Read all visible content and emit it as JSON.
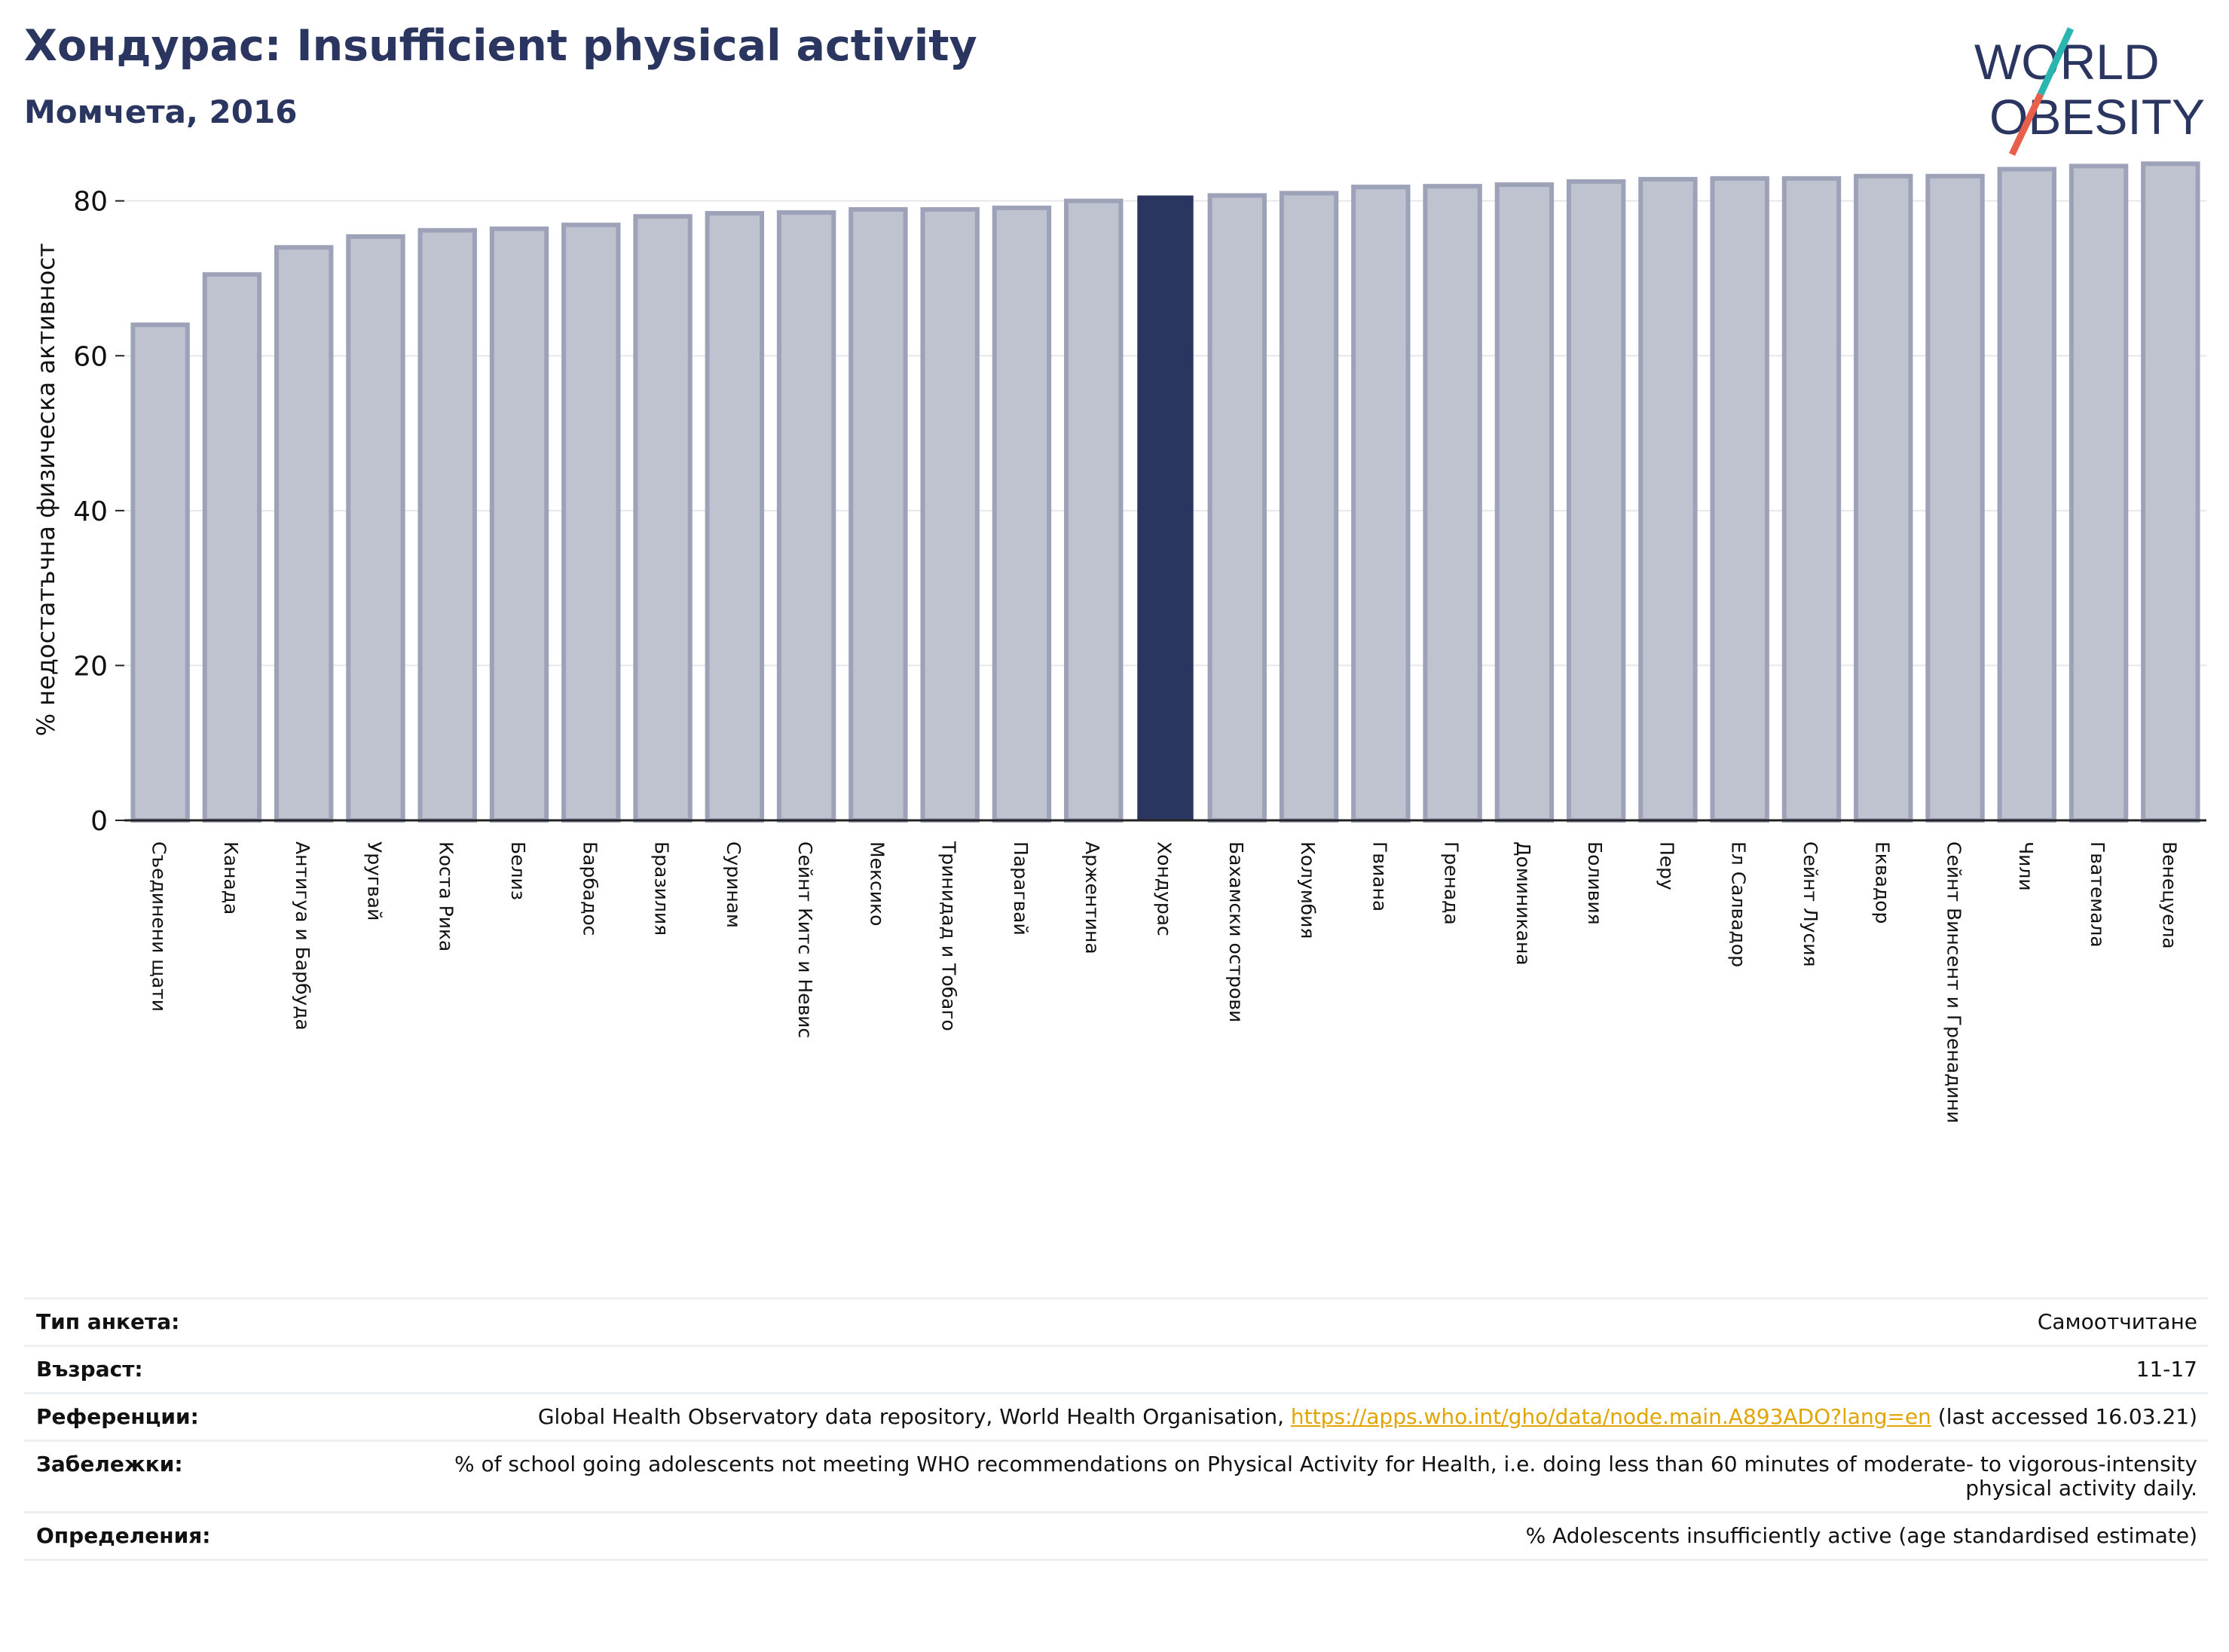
{
  "header": {
    "title": "Хондурас: Insufficient physical activity",
    "subtitle": "Момчета, 2016"
  },
  "logo": {
    "text_line1": "WORLD",
    "text_line2": "OBESITY",
    "colors": {
      "text": "#2a3560",
      "slash_top": "#2bb5b0",
      "slash_bottom": "#e8604c"
    }
  },
  "colors": {
    "bar": "#bfc2cf",
    "bar_edge": "#9ea2b8",
    "highlight": "#2a3560",
    "grid": "#e6e7ec",
    "axis": "#222222"
  },
  "chart_data": {
    "type": "bar",
    "title": "",
    "xlabel": "",
    "ylabel": "% недостатъчна физическа активност",
    "ylim": [
      0,
      86
    ],
    "yticks": [
      0,
      20,
      40,
      60,
      80
    ],
    "grid": true,
    "highlight_category": "Хондурас",
    "categories": [
      "Съединени щати",
      "Канада",
      "Антигуа и Барбуда",
      "Уругвай",
      "Коста Рика",
      "Белиз",
      "Барбадос",
      "Бразилия",
      "Суринам",
      "Сейнт Китс и Невис",
      "Мексико",
      "Тринидад и Тобаго",
      "Парагвай",
      "Аржентина",
      "Хондурас",
      "Бахамски острови",
      "Колумбия",
      "Гвиана",
      "Гренада",
      "Доминикана",
      "Боливия",
      "Перу",
      "Ел Салвадор",
      "Сейнт Лусия",
      "Еквадор",
      "Сейнт Винсент и Гренадини",
      "Чили",
      "Гватемала",
      "Венецуела"
    ],
    "values": [
      64.0,
      70.5,
      74.0,
      75.4,
      76.2,
      76.4,
      76.9,
      78.0,
      78.4,
      78.5,
      78.9,
      78.9,
      79.1,
      80.0,
      80.6,
      80.7,
      81.0,
      81.8,
      81.9,
      82.1,
      82.5,
      82.8,
      82.9,
      82.9,
      83.2,
      83.2,
      84.1,
      84.5,
      84.8
    ]
  },
  "meta": {
    "rows": [
      {
        "key": "Тип анкета:",
        "value": "Самоотчитане"
      },
      {
        "key": "Възраст:",
        "value": "11-17"
      },
      {
        "key": "Референции:",
        "value_prefix": "Global Health Observatory data repository, World Health Organisation, ",
        "link": "https://apps.who.int/gho/data/node.main.A893ADO?lang=en",
        "value_suffix": " (last accessed 16.03.21)"
      },
      {
        "key": "Забележки:",
        "value": "% of school going adolescents not meeting WHO recommendations on Physical Activity for Health, i.e. doing less than 60 minutes of moderate- to vigorous-intensity physical activity daily."
      },
      {
        "key": "Определения:",
        "value": "% Adolescents insufficiently active (age standardised estimate)"
      }
    ]
  }
}
